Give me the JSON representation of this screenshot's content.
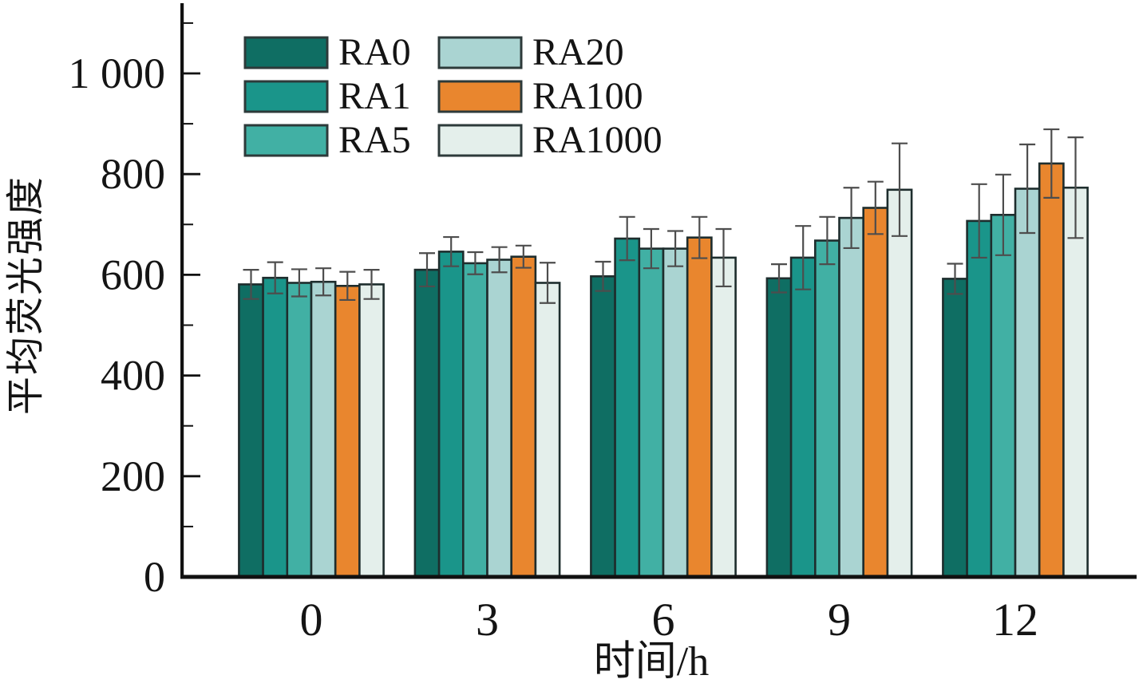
{
  "figure": {
    "background": "#ffffff",
    "text_color": "#141414",
    "axis_color": "#111111",
    "bar_outline_color": "#1e2d2d",
    "error_bar_color": "#4d4d4d"
  },
  "chart_data": {
    "type": "bar",
    "title": "",
    "xlabel": "时间/h",
    "ylabel": "平均荧光强度",
    "categories": [
      "0",
      "3",
      "6",
      "9",
      "12"
    ],
    "y_ticks": [
      0,
      200,
      400,
      600,
      800,
      1000
    ],
    "y_tick_labels": [
      "0",
      "200",
      "400",
      "600",
      "800",
      "1 000"
    ],
    "y_minor_ticks": [
      100,
      300,
      500,
      700,
      900,
      1100
    ],
    "ylim": [
      0,
      1140
    ],
    "grid": false,
    "legend_position": "top-left-inside",
    "legend_columns": 2,
    "error_bars": true,
    "series": [
      {
        "name": "RA0",
        "color": "#0f6e63",
        "values": [
          581,
          610,
          597,
          593,
          592
        ],
        "errors": [
          29,
          33,
          29,
          28,
          30
        ]
      },
      {
        "name": "RA1",
        "color": "#1a958a",
        "values": [
          594,
          646,
          672,
          634,
          707
        ],
        "errors": [
          31,
          29,
          43,
          63,
          73
        ]
      },
      {
        "name": "RA5",
        "color": "#41b0a4",
        "values": [
          584,
          623,
          652,
          668,
          719
        ],
        "errors": [
          27,
          22,
          39,
          47,
          80
        ]
      },
      {
        "name": "RA20",
        "color": "#aad4d2",
        "values": [
          586,
          630,
          652,
          713,
          771
        ],
        "errors": [
          27,
          25,
          35,
          60,
          88
        ]
      },
      {
        "name": "RA100",
        "color": "#e9862e",
        "values": [
          578,
          636,
          674,
          733,
          821
        ],
        "errors": [
          28,
          22,
          41,
          52,
          68
        ]
      },
      {
        "name": "RA1000",
        "color": "#e4efeb",
        "values": [
          581,
          584,
          634,
          769,
          773
        ],
        "errors": [
          29,
          40,
          57,
          92,
          100
        ]
      }
    ]
  }
}
